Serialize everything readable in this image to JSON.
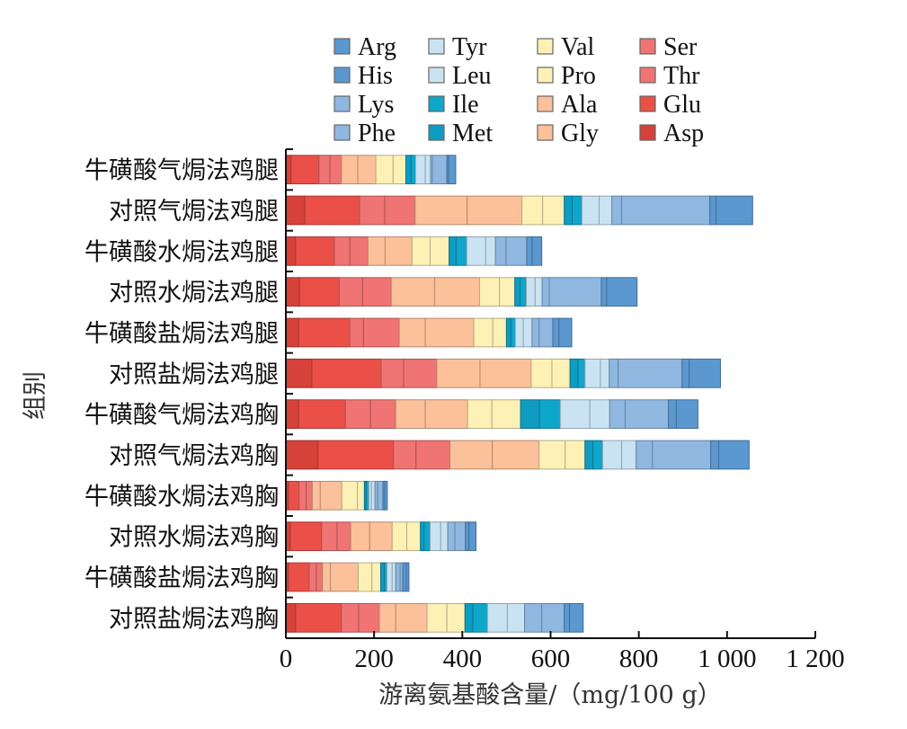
{
  "chart_data": {
    "type": "bar",
    "orientation": "horizontal",
    "stacked": true,
    "title": "",
    "xlabel": "游离氨基酸含量/（mg/100 g）",
    "ylabel": "组别",
    "xlim": [
      0,
      1200
    ],
    "xticks": [
      0,
      200,
      400,
      600,
      800,
      1000,
      1200
    ],
    "xtick_labels": [
      "0",
      "200",
      "400",
      "600",
      "800",
      "1 000",
      "1 200"
    ],
    "grid": false,
    "legend_position": "top",
    "categories": [
      "牛磺酸气焗法鸡腿",
      "对照气焗法鸡腿",
      "牛磺酸水焗法鸡腿",
      "对照水焗法鸡腿",
      "牛磺酸盐焗法鸡腿",
      "对照盐焗法鸡腿",
      "牛磺酸气焗法鸡胸",
      "对照气焗法鸡胸",
      "牛磺酸水焗法鸡胸",
      "对照水焗法鸡胸",
      "牛磺酸盐焗法鸡胸",
      "对照盐焗法鸡胸"
    ],
    "legend_order": [
      "Arg",
      "Tyr",
      "Val",
      "Ser",
      "His",
      "Leu",
      "Pro",
      "Thr",
      "Lys",
      "Ile",
      "Ala",
      "Glu",
      "Phe",
      "Met",
      "Gly",
      "Asp"
    ],
    "series": [
      {
        "name": "Asp",
        "color": "#d6413a",
        "values": [
          12,
          43,
          22,
          31,
          29,
          59,
          29,
          73,
          6,
          10,
          6,
          22
        ]
      },
      {
        "name": "Glu",
        "color": "#ea5048",
        "values": [
          63,
          124,
          88,
          90,
          116,
          157,
          106,
          171,
          24,
          71,
          47,
          104
        ]
      },
      {
        "name": "Thr",
        "color": "#ef7473",
        "values": [
          25,
          57,
          35,
          53,
          31,
          51,
          57,
          51,
          16,
          35,
          16,
          39
        ]
      },
      {
        "name": "Ser",
        "color": "#ef7473",
        "values": [
          26,
          69,
          41,
          65,
          81,
          75,
          57,
          77,
          14,
          31,
          14,
          47
        ]
      },
      {
        "name": "Gly",
        "color": "#fcc09a",
        "values": [
          37,
          118,
          39,
          98,
          59,
          98,
          67,
          96,
          18,
          43,
          18,
          37
        ]
      },
      {
        "name": "Ala",
        "color": "#fcc09a",
        "values": [
          41,
          124,
          61,
          102,
          110,
          116,
          96,
          106,
          49,
          51,
          63,
          71
        ]
      },
      {
        "name": "Pro",
        "color": "#fdf1b6",
        "values": [
          39,
          47,
          41,
          45,
          43,
          47,
          55,
          59,
          35,
          33,
          31,
          45
        ]
      },
      {
        "name": "Val",
        "color": "#fdf1b6",
        "values": [
          29,
          49,
          43,
          35,
          31,
          41,
          65,
          45,
          16,
          31,
          20,
          41
        ]
      },
      {
        "name": "Met",
        "color": "#0f9cc2",
        "values": [
          12,
          18,
          16,
          12,
          10,
          18,
          43,
          18,
          4,
          8,
          8,
          18
        ]
      },
      {
        "name": "Ile",
        "color": "#0fa6cc",
        "values": [
          10,
          22,
          24,
          14,
          10,
          16,
          47,
          22,
          6,
          14,
          6,
          33
        ]
      },
      {
        "name": "Leu",
        "color": "#cae3f3",
        "values": [
          22,
          39,
          43,
          20,
          18,
          35,
          67,
          43,
          6,
          24,
          12,
          45
        ]
      },
      {
        "name": "Tyr",
        "color": "#cae3f3",
        "values": [
          12,
          29,
          22,
          16,
          20,
          20,
          45,
          33,
          8,
          16,
          8,
          39
        ]
      },
      {
        "name": "Phe",
        "color": "#8fb7e0",
        "values": [
          4,
          22,
          24,
          16,
          16,
          20,
          35,
          37,
          6,
          16,
          10,
          39
        ]
      },
      {
        "name": "Lys",
        "color": "#8fb7e0",
        "values": [
          33,
          200,
          47,
          118,
          31,
          145,
          98,
          132,
          12,
          24,
          6,
          51
        ]
      },
      {
        "name": "His",
        "color": "#5b98d0",
        "values": [
          4,
          14,
          12,
          12,
          14,
          16,
          18,
          18,
          4,
          8,
          8,
          12
        ]
      },
      {
        "name": "Arg",
        "color": "#5b98d0",
        "values": [
          16,
          83,
          22,
          69,
          29,
          71,
          49,
          69,
          6,
          16,
          6,
          31
        ]
      }
    ]
  }
}
